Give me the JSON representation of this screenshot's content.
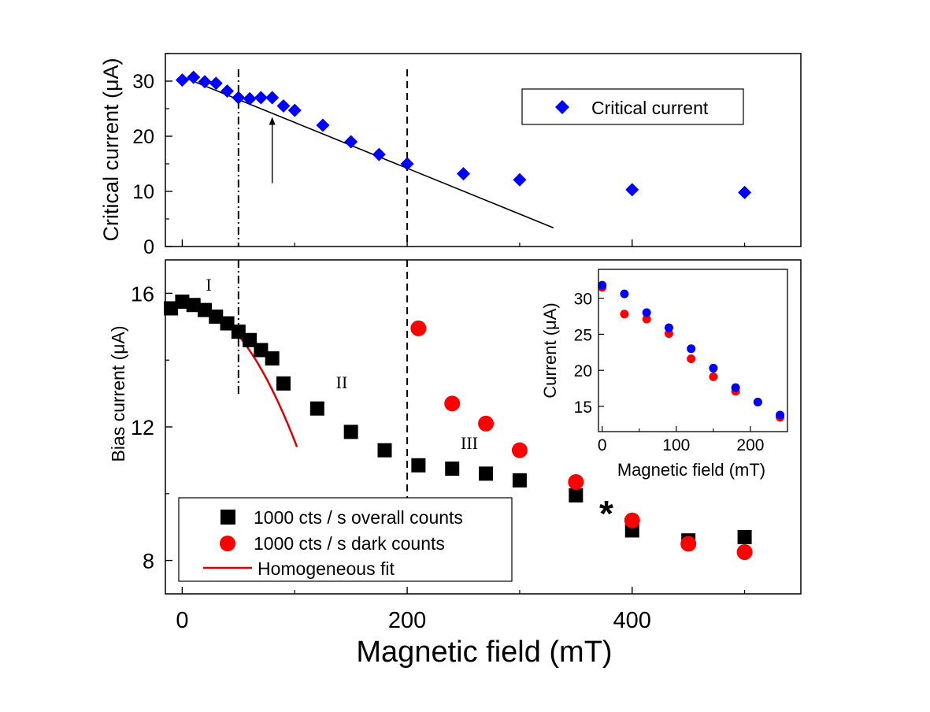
{
  "chart_data": [
    {
      "id": "top",
      "type": "scatter",
      "ylabel": "Critical current (μA)",
      "xlim": [
        -15,
        550
      ],
      "ylim": [
        0,
        35
      ],
      "yticks": [
        0,
        10,
        20,
        30
      ],
      "xticks": [
        0,
        200,
        400
      ],
      "legend": {
        "position": "top-right",
        "entries": [
          "Critical current"
        ]
      },
      "series": [
        {
          "name": "Critical current",
          "marker": "diamond",
          "color": "#0000ff",
          "x": [
            0,
            10,
            20,
            30,
            40,
            50,
            60,
            70,
            80,
            90,
            100,
            125,
            150,
            175,
            200,
            250,
            300,
            400,
            500
          ],
          "y": [
            30.2,
            30.7,
            29.9,
            29.6,
            28.2,
            27.0,
            26.8,
            27.0,
            27.0,
            25.5,
            24.7,
            22.0,
            19.0,
            16.7,
            15.0,
            13.2,
            12.1,
            10.3,
            9.8
          ]
        }
      ],
      "fit_line": {
        "x": [
          0,
          330
        ],
        "y": [
          30.8,
          3.4
        ],
        "color": "#000000"
      },
      "arrow": {
        "x": 80,
        "y_from": 11.5,
        "y_to": 23.5
      },
      "vlines": [
        {
          "x": 50,
          "style": "dashdot"
        },
        {
          "x": 200,
          "style": "dash"
        }
      ]
    },
    {
      "id": "bottom",
      "type": "scatter",
      "xlabel": "Magnetic field (mT)",
      "ylabel": "Bias current (μA)",
      "xlim": [
        -15,
        550
      ],
      "ylim": [
        7,
        17
      ],
      "yticks": [
        8,
        12,
        16
      ],
      "xticks": [
        0,
        200,
        400
      ],
      "legend": {
        "position": "bottom-left",
        "entries": [
          "1000 cts / s overall counts",
          "1000 cts / s dark counts",
          "Homogeneous fit"
        ]
      },
      "series": [
        {
          "name": "1000 cts / s overall counts",
          "marker": "square",
          "color": "#000000",
          "x": [
            -10,
            0,
            10,
            20,
            30,
            40,
            50,
            60,
            70,
            80,
            90,
            120,
            150,
            180,
            210,
            240,
            270,
            300,
            350,
            400,
            450,
            500
          ],
          "y": [
            15.55,
            15.75,
            15.65,
            15.5,
            15.3,
            15.1,
            14.85,
            14.6,
            14.3,
            14.05,
            13.3,
            12.55,
            11.85,
            11.3,
            10.85,
            10.75,
            10.6,
            10.4,
            9.95,
            8.9,
            8.6,
            8.7
          ]
        },
        {
          "name": "1000 cts / s dark counts",
          "marker": "circle",
          "color": "#ff0000",
          "x": [
            210,
            240,
            270,
            300,
            350,
            400,
            450,
            500
          ],
          "y": [
            14.95,
            12.7,
            12.1,
            11.3,
            10.35,
            9.2,
            8.5,
            8.25
          ]
        }
      ],
      "fit": {
        "name": "Homogeneous fit",
        "color": "#dd0000",
        "x0": 5,
        "y0": 15.65,
        "x_end": 102,
        "y_end": 11.4
      },
      "vlines": [
        {
          "x": 50,
          "style": "dashdot"
        },
        {
          "x": 200,
          "style": "dash"
        }
      ],
      "regions": [
        "I",
        "II",
        "III"
      ],
      "star": "*"
    },
    {
      "id": "inset",
      "type": "scatter",
      "xlabel": "Magnetic field (mT)",
      "ylabel": "Current (μA)",
      "xlim": [
        -5,
        250
      ],
      "ylim": [
        11.5,
        34
      ],
      "yticks": [
        15,
        20,
        25,
        30
      ],
      "xticks": [
        0,
        100,
        200
      ],
      "series": [
        {
          "name": "red",
          "marker": "circle",
          "color": "#ff0000",
          "x": [
            0,
            30,
            60,
            90,
            120,
            150,
            180,
            210,
            240
          ],
          "y": [
            31.5,
            27.8,
            27.1,
            25.1,
            21.6,
            19.1,
            17.1,
            15.6,
            13.5
          ]
        },
        {
          "name": "blue",
          "marker": "circle",
          "color": "#0000ff",
          "x": [
            0,
            30,
            60,
            90,
            120,
            150,
            180,
            210,
            240
          ],
          "y": [
            31.8,
            30.6,
            28.0,
            25.9,
            23.0,
            20.3,
            17.6,
            15.6,
            13.8
          ]
        }
      ]
    }
  ]
}
